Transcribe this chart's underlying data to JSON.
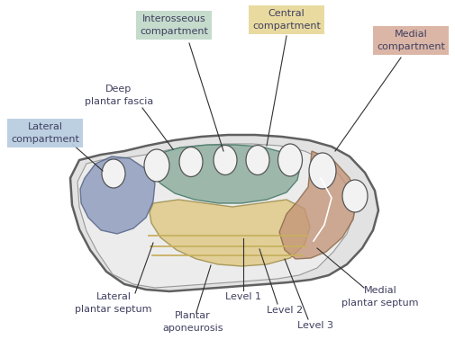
{
  "bg": "#ffffff",
  "text_color": "#404060",
  "line_color": "#303030",
  "labels": {
    "interosseous_compartment": "Interosseous\ncompartment",
    "central_compartment": "Central\ncompartment",
    "medial_compartment": "Medial\ncompartment",
    "lateral_compartment": "Lateral\ncompartment",
    "deep_plantar_fascia": "Deep\nplantar fascia",
    "lateral_plantar_septum": "Lateral\nplantar septum",
    "plantar_aponeurosis": "Plantar\naponeurosis",
    "level1": "Level 1",
    "level2": "Level 2",
    "level3": "Level 3",
    "medial_plantar_septum": "Medial\nplantar septum"
  },
  "colors": {
    "outer_fill": "#e2e2e2",
    "outer_edge": "#606060",
    "inner_fill": "#ececec",
    "interosseous_fill": "#8fafa0",
    "central_fill": "#dfc882",
    "medial_fill": "#c4967a",
    "lateral_fill": "#8090b8",
    "bone_fill": "#f2f2f2",
    "bone_edge": "#555555",
    "label_interosseous_bg": "#c0d8c8",
    "label_central_bg": "#e8d898",
    "label_medial_bg": "#d8b0a0",
    "label_lateral_bg": "#b8cce0"
  }
}
